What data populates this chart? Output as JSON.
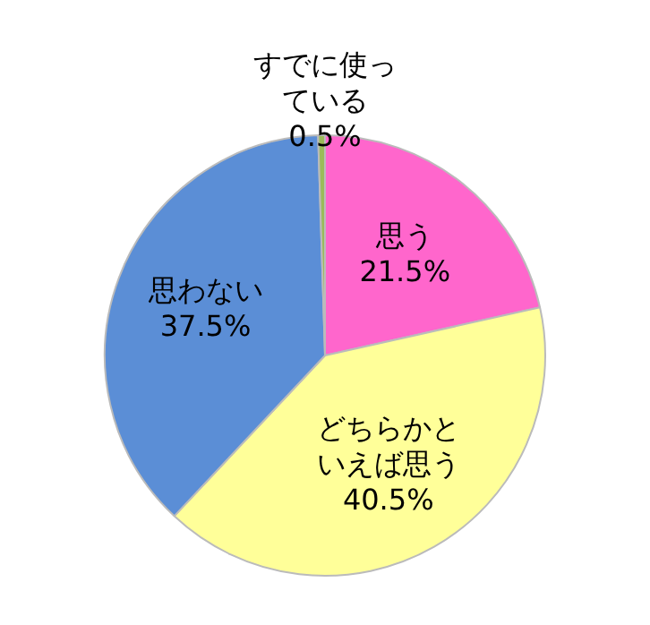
{
  "chart_data": {
    "type": "pie",
    "categories": [
      "思う",
      "どちらかといえば思う",
      "思わない",
      "すでに使っている"
    ],
    "values": [
      21.5,
      40.5,
      37.5,
      0.5
    ],
    "colors": [
      "#ff66cc",
      "#ffff99",
      "#5b8ed6",
      "#9bbb59"
    ],
    "value_labels": [
      "21.5%",
      "40.5%",
      "37.5%",
      "0.5%"
    ],
    "legend": false
  }
}
